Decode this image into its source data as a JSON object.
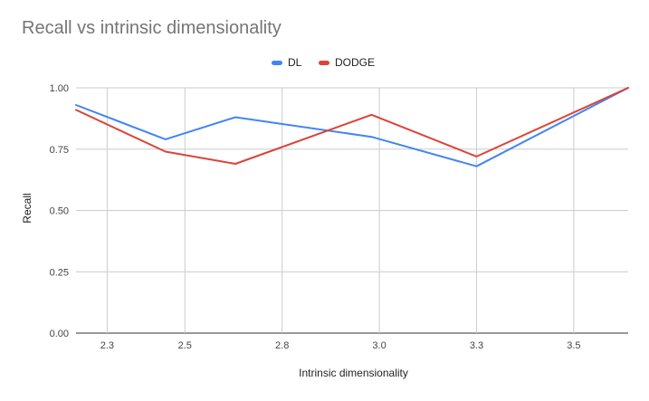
{
  "chart_data": {
    "type": "line",
    "title": "Recall vs intrinsic dimensionality",
    "xlabel": "Intrinsic dimensionality",
    "ylabel": "Recall",
    "xlim": [
      2.22,
      3.64
    ],
    "ylim": [
      0,
      1
    ],
    "x_ticks": [
      "2.3",
      "2.5",
      "2.8",
      "3.0",
      "3.3",
      "3.5"
    ],
    "x_tick_values": [
      2.3,
      2.5,
      2.75,
      3.0,
      3.25,
      3.5
    ],
    "y_ticks": [
      "0.00",
      "0.25",
      "0.50",
      "0.75",
      "1.00"
    ],
    "y_tick_values": [
      0,
      0.25,
      0.5,
      0.75,
      1.0
    ],
    "grid": true,
    "legend_position": "top",
    "series": [
      {
        "name": "DL",
        "color": "#4285F4",
        "x": [
          2.22,
          2.45,
          2.63,
          2.98,
          3.25,
          3.64
        ],
        "y": [
          0.93,
          0.79,
          0.88,
          0.8,
          0.68,
          1.0
        ]
      },
      {
        "name": "DODGE",
        "color": "#DB4437",
        "x": [
          2.22,
          2.45,
          2.63,
          2.98,
          3.25,
          3.64
        ],
        "y": [
          0.91,
          0.74,
          0.69,
          0.89,
          0.72,
          1.0
        ]
      }
    ]
  }
}
